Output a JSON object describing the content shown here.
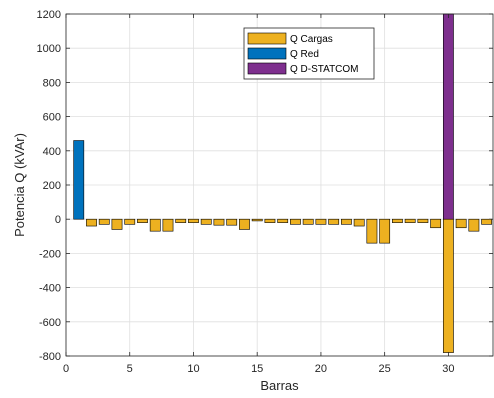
{
  "chart_data": {
    "type": "bar",
    "xlabel": "Barras",
    "ylabel": "Potencia Q (kVAr)",
    "xlim": [
      0,
      33.5
    ],
    "ylim": [
      -800,
      1200
    ],
    "xticks": [
      0,
      5,
      10,
      15,
      20,
      25,
      30
    ],
    "yticks": [
      -800,
      -600,
      -400,
      -200,
      0,
      200,
      400,
      600,
      800,
      1000,
      1200
    ],
    "grid": true,
    "legend_position": "top-center",
    "series": [
      {
        "name": "Q Cargas",
        "color": "#EDB120",
        "x": [
          2,
          3,
          4,
          5,
          6,
          7,
          8,
          9,
          10,
          11,
          12,
          13,
          14,
          15,
          16,
          17,
          18,
          19,
          20,
          21,
          22,
          23,
          24,
          25,
          26,
          27,
          28,
          29,
          30,
          31,
          32,
          33
        ],
        "values": [
          -40,
          -30,
          -60,
          -30,
          -20,
          -70,
          -70,
          -20,
          -20,
          -30,
          -35,
          -35,
          -60,
          -10,
          -20,
          -20,
          -30,
          -30,
          -30,
          -30,
          -30,
          -40,
          -140,
          -140,
          -20,
          -20,
          -20,
          -50,
          -780,
          -50,
          -70,
          -30
        ]
      },
      {
        "name": "Q Red",
        "color": "#0072BD",
        "x": [
          1
        ],
        "values": [
          460
        ]
      },
      {
        "name": "Q D-STATCOM",
        "color": "#7E2F8E",
        "x": [
          30
        ],
        "values": [
          1200
        ]
      }
    ]
  }
}
